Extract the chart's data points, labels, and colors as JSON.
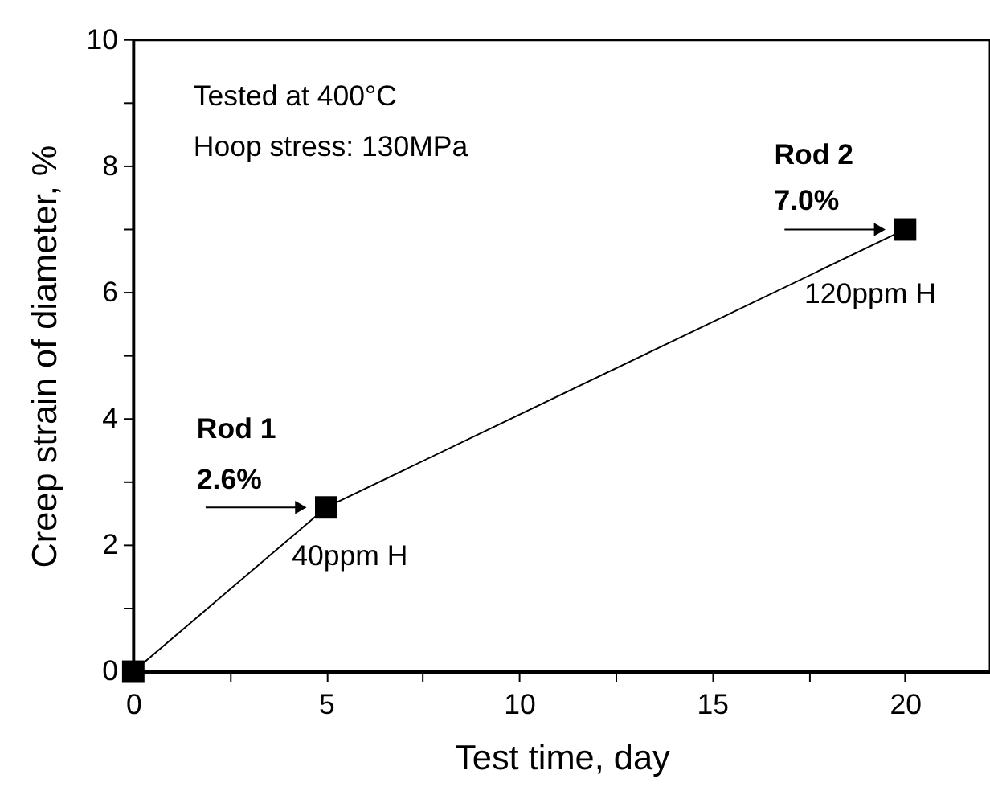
{
  "chart_data": {
    "type": "line",
    "xlabel": "Test time, day",
    "ylabel": "Creep strain of diameter, %",
    "x": [
      0,
      5,
      20
    ],
    "series": [
      {
        "color": "#000000",
        "values": [
          0,
          2.6,
          7.0
        ]
      }
    ],
    "marker": "square",
    "line_style": "solid",
    "xlim": [
      0,
      22.2
    ],
    "ylim": [
      0,
      10
    ],
    "xticks": [
      0,
      {
        "value": 2.5,
        "label": null
      },
      5,
      {
        "value": 7.5,
        "label": null
      },
      10,
      {
        "value": 12.5,
        "label": null
      },
      15,
      {
        "value": 17.5,
        "label": null
      },
      20
    ],
    "yticks": [
      0,
      {
        "value": 1,
        "label": null
      },
      2,
      {
        "value": 3,
        "label": null
      },
      4,
      {
        "value": 5,
        "label": null
      },
      6,
      {
        "value": 7,
        "label": null
      },
      8,
      {
        "value": 9,
        "label": null
      },
      10
    ],
    "grid": false,
    "annotations": [
      "Tested at 400°C",
      "Hoop stress: 130MPa",
      "Rod 1",
      "2.6%",
      "40ppm H",
      "Rod 2",
      "7.0%",
      "120ppm H"
    ]
  }
}
